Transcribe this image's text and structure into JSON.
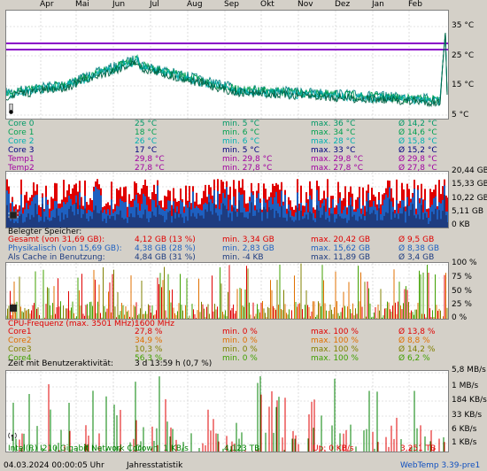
{
  "months": [
    "Apr",
    "Mai",
    "Jun",
    "Jul",
    "Aug",
    "Sep",
    "Okt",
    "Nov",
    "Dez",
    "Jan",
    "Feb"
  ],
  "temp_axis": [
    "35 °C",
    "25 °C",
    "15 °C",
    "5 °C"
  ],
  "temp_rows": [
    {
      "name": "Core 0",
      "cur": "25 °C",
      "min": "min. 5 °C",
      "max": "max. 36 °C",
      "avg": "Ø 14,2 °C",
      "color": "#009966"
    },
    {
      "name": "Core 1",
      "cur": "18 °C",
      "min": "min. 6 °C",
      "max": "max. 34 °C",
      "avg": "Ø 14,6 °C",
      "color": "#00a050"
    },
    {
      "name": "Core 2",
      "cur": "26 °C",
      "min": "min. 6 °C",
      "max": "max. 28 °C",
      "avg": "Ø 15,8 °C",
      "color": "#00b0b0"
    },
    {
      "name": "Core 3",
      "cur": "17 °C",
      "min": "min. 5 °C",
      "max": "max. 33 °C",
      "avg": "Ø 15,2 °C",
      "color": "#000080"
    },
    {
      "name": "Temp1",
      "cur": "29,8 °C",
      "min": "min. 29,8 °C",
      "max": "max. 29,8 °C",
      "avg": "Ø 29,8 °C",
      "color": "#a000a0"
    },
    {
      "name": "Temp2",
      "cur": "27,8 °C",
      "min": "min. 27,8 °C",
      "max": "max. 27,8 °C",
      "avg": "Ø 27,8 °C",
      "color": "#a000a0"
    }
  ],
  "mem_axis": [
    "20,44 GB",
    "15,33 GB",
    "10,22 GB",
    "5,11 GB",
    "0 KB"
  ],
  "mem_header": "Belegter Speicher:",
  "mem_rows": [
    {
      "name": "Gesamt (von 31,69 GB):",
      "cur": "4,12 GB (13 %)",
      "min": "min. 3,34 GB",
      "max": "max. 20,42 GB",
      "avg": "Ø 9,5 GB",
      "color": "#e00000"
    },
    {
      "name": "Physikalisch (von 15,69 GB):",
      "cur": "4,38 GB (28 %)",
      "min": "min. 2,83 GB",
      "max": "max. 15,62 GB",
      "avg": "Ø 8,38 GB",
      "color": "#1e60c0"
    },
    {
      "name": "Als Cache in Benutzung:",
      "cur": "4,84 GB (31 %)",
      "min": "min. -4 KB",
      "max": "max. 11,89 GB",
      "avg": "Ø 3,4 GB",
      "color": "#1e3c80"
    }
  ],
  "cpu_axis": [
    "100 %",
    "75 %",
    "50 %",
    "25 %",
    "0 %"
  ],
  "cpu_freq_label": "CPU-Frequenz (max. 3501 MHz):",
  "cpu_freq_value": "1600 MHz",
  "cpu_rows": [
    {
      "name": "Core1",
      "cur": "27,8 %",
      "min": "min. 0 %",
      "max": "max. 100 %",
      "avg": "Ø 13,8 %",
      "color": "#e00000"
    },
    {
      "name": "Core2",
      "cur": "34,9 %",
      "min": "min. 0 %",
      "max": "max. 100 %",
      "avg": "Ø 8,8 %",
      "color": "#e07000"
    },
    {
      "name": "Core3",
      "cur": "10,3 %",
      "min": "min. 0 %",
      "max": "max. 100 %",
      "avg": "Ø 14,2 %",
      "color": "#808000"
    },
    {
      "name": "Core4",
      "cur": "56,3 %",
      "min": "min. 0 %",
      "max": "max. 100 %",
      "avg": "Ø 6,2 %",
      "color": "#40a000"
    }
  ],
  "activity_label": "Zeit mit Benutzeraktivität:",
  "activity_value": "3 d 13:59 h (0,7 %)",
  "net_axis": [
    "5,8 MB/s",
    "1 MB/s",
    "184 KB/s",
    "33 KB/s",
    "6 KB/s",
    "1 KB/s"
  ],
  "net_row": {
    "name": "Intel(R) I210 Gigabit Network Cor",
    "down": "Down: 1 KB/s",
    "down_total": "4,123 TB",
    "up": "Up: 0 KB/s",
    "up_total": "3,251 TB"
  },
  "status": {
    "datetime": "04.03.2024 00:00:05 Uhr",
    "mode": "Jahresstatistik",
    "version": "WebTemp 3.39-pre1"
  }
}
